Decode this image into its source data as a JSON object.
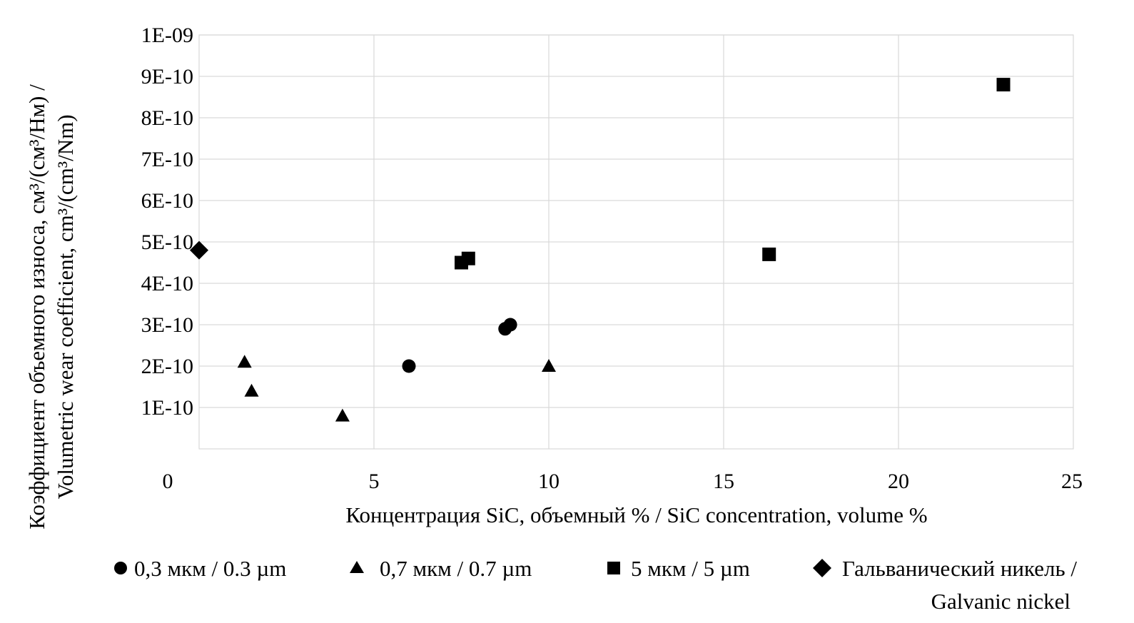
{
  "chart_data": {
    "type": "scatter",
    "xlabel": "Концентрация SiC, объемный % / SiC concentration, volume %",
    "ylabel_line1": "Коэффициент объемного износа, см³/(см³/Нм) /",
    "ylabel_line2": "Volumetric wear coefficient, cm³/(cm³/Nm)",
    "xlim": [
      0,
      25
    ],
    "ylim": [
      0,
      1e-09
    ],
    "x_ticks": [
      {
        "value": 0,
        "label": "0"
      },
      {
        "value": 5,
        "label": "5"
      },
      {
        "value": 10,
        "label": "10"
      },
      {
        "value": 15,
        "label": "15"
      },
      {
        "value": 20,
        "label": "20"
      },
      {
        "value": 25,
        "label": "25"
      }
    ],
    "y_ticks": [
      {
        "value": 1e-10,
        "label": "1E-10"
      },
      {
        "value": 2e-10,
        "label": "2E-10"
      },
      {
        "value": 3e-10,
        "label": "3E-10"
      },
      {
        "value": 4e-10,
        "label": "4E-10"
      },
      {
        "value": 5e-10,
        "label": "5E-10"
      },
      {
        "value": 6e-10,
        "label": "6E-10"
      },
      {
        "value": 7e-10,
        "label": "7E-10"
      },
      {
        "value": 8e-10,
        "label": "8E-10"
      },
      {
        "value": 9e-10,
        "label": "9E-10"
      },
      {
        "value": 1e-09,
        "label": "1E-09"
      }
    ],
    "grid": true,
    "legend_position": "bottom",
    "series": [
      {
        "name": "0,3 мкм / 0.3 µm",
        "marker": "circle",
        "color": "#000000",
        "points": [
          {
            "x": 6.0,
            "y": 2e-10
          },
          {
            "x": 8.75,
            "y": 2.9e-10
          },
          {
            "x": 8.9,
            "y": 3e-10
          }
        ]
      },
      {
        "name": "0,7 мкм / 0.7 µm",
        "marker": "triangle",
        "color": "#000000",
        "points": [
          {
            "x": 1.3,
            "y": 2.1e-10
          },
          {
            "x": 1.5,
            "y": 1.4e-10
          },
          {
            "x": 4.1,
            "y": 8e-11
          },
          {
            "x": 10.0,
            "y": 2e-10
          }
        ]
      },
      {
        "name": "5 мкм / 5 µm",
        "marker": "square",
        "color": "#000000",
        "points": [
          {
            "x": 7.5,
            "y": 4.5e-10
          },
          {
            "x": 7.7,
            "y": 4.6e-10
          },
          {
            "x": 16.3,
            "y": 4.7e-10
          },
          {
            "x": 23.0,
            "y": 8.8e-10
          }
        ]
      },
      {
        "name_line1": "Гальванический никель /",
        "name_line2": "Galvanic nickel",
        "marker": "diamond",
        "color": "#000000",
        "points": [
          {
            "x": 0.0,
            "y": 4.8e-10
          }
        ]
      }
    ]
  }
}
